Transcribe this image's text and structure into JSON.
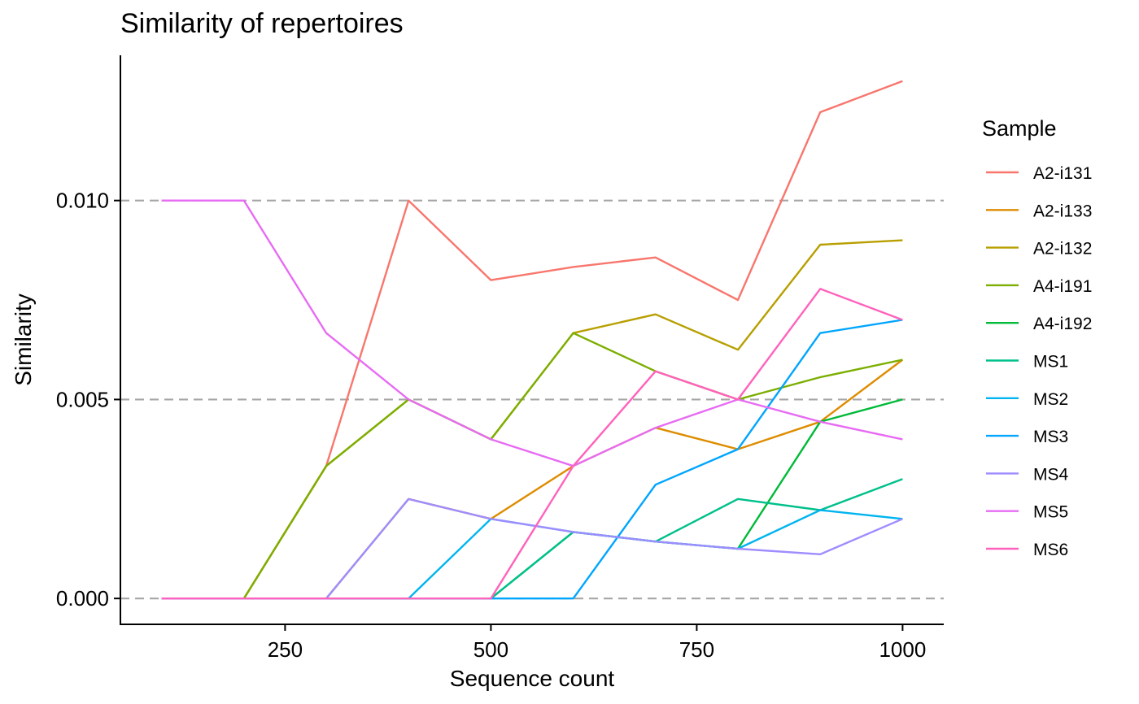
{
  "chart_data": {
    "type": "line",
    "title": "Similarity of repertoires",
    "xlabel": "Sequence count",
    "ylabel": "Similarity",
    "xlim": [
      50,
      1050
    ],
    "ylim": [
      -0.00065,
      0.01365
    ],
    "x_ticks": [
      250,
      500,
      750,
      1000
    ],
    "x_tick_labels": [
      "250",
      "500",
      "750",
      "1000"
    ],
    "y_ticks": [
      0.0,
      0.005,
      0.01
    ],
    "y_tick_labels": [
      "0.000",
      "0.005",
      "0.010"
    ],
    "grid": "horizontal dashed at y ticks",
    "legend": {
      "title": "Sample",
      "position": "right"
    },
    "x": [
      100,
      200,
      300,
      400,
      500,
      600,
      700,
      800,
      900,
      1000
    ],
    "series": [
      {
        "name": "A2-i131",
        "color": "#F8766D",
        "values": [
          0,
          0,
          0.00333,
          0.01,
          0.008,
          0.00833,
          0.00857,
          0.0075,
          0.01222,
          0.013
        ]
      },
      {
        "name": "A2-i133",
        "color": "#DE8C00",
        "values": [
          0,
          0,
          0,
          0.0025,
          0.002,
          0.00333,
          0.00429,
          0.00375,
          0.00444,
          0.006
        ]
      },
      {
        "name": "A2-i132",
        "color": "#B79F00",
        "values": [
          0,
          0,
          0.00333,
          0.005,
          0.004,
          0.00667,
          0.00714,
          0.00625,
          0.00889,
          0.009
        ]
      },
      {
        "name": "A4-i191",
        "color": "#7CAE00",
        "values": [
          0,
          0,
          0.00333,
          0.005,
          0.004,
          0.00667,
          0.00571,
          0.005,
          0.00556,
          0.006
        ]
      },
      {
        "name": "A4-i192",
        "color": "#00BA38",
        "values": [
          0,
          0,
          0,
          0,
          0,
          0.00167,
          0.00143,
          0.00125,
          0.00444,
          0.005
        ]
      },
      {
        "name": "MS1",
        "color": "#00C08B",
        "values": [
          0,
          0,
          0,
          0,
          0,
          0.00167,
          0.00143,
          0.0025,
          0.00222,
          0.003
        ]
      },
      {
        "name": "MS2",
        "color": "#00B4F0",
        "values": [
          0,
          0,
          0,
          0,
          0.002,
          0.00167,
          0.00143,
          0.00125,
          0.00222,
          0.002
        ]
      },
      {
        "name": "MS3",
        "color": "#00A5FF",
        "values": [
          0,
          0,
          0,
          0,
          0,
          0,
          0.00286,
          0.00375,
          0.00667,
          0.007
        ]
      },
      {
        "name": "MS4",
        "color": "#9F8CFF",
        "values": [
          0,
          0,
          0,
          0.0025,
          0.002,
          0.00167,
          0.00143,
          0.00125,
          0.00111,
          0.002
        ]
      },
      {
        "name": "MS5",
        "color": "#E76BF3",
        "values": [
          0.01,
          0.01,
          0.00667,
          0.005,
          0.004,
          0.00333,
          0.00429,
          0.005,
          0.00444,
          0.004
        ]
      },
      {
        "name": "MS6",
        "color": "#FF62BC",
        "values": [
          0,
          0,
          0,
          0,
          0,
          0.00333,
          0.00571,
          0.005,
          0.00778,
          0.007
        ]
      }
    ]
  }
}
